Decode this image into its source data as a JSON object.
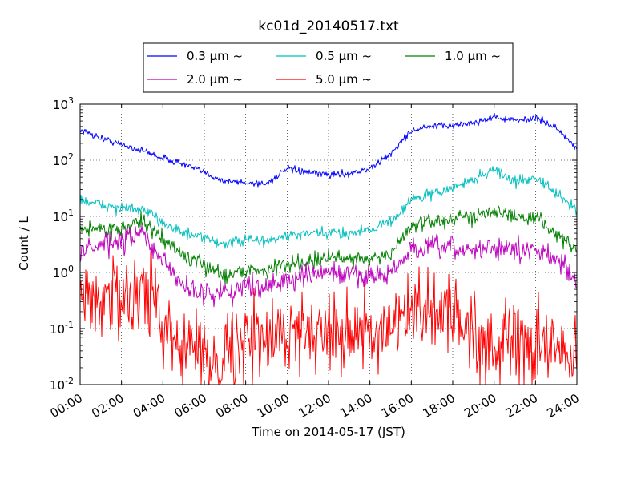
{
  "chart_data": {
    "type": "line",
    "title": "kc01d_20140517.txt",
    "xlabel": "Time on 2014-05-17 (JST)",
    "ylabel": "Count / L",
    "yscale": "log",
    "xlim": [
      "00:00",
      "24:00"
    ],
    "ylim": [
      0.01,
      1000
    ],
    "grid": true,
    "legend": {
      "placement": "top-center",
      "columns": 3
    },
    "x_ticks": [
      "00:00",
      "02:00",
      "04:00",
      "06:00",
      "08:00",
      "10:00",
      "12:00",
      "14:00",
      "16:00",
      "18:00",
      "20:00",
      "22:00",
      "24:00"
    ],
    "y_tick_base": "10",
    "y_tick_exponents": [
      "-2",
      "-1",
      "0",
      "1",
      "2",
      "3"
    ],
    "x": [
      "00:00",
      "01:00",
      "02:00",
      "03:00",
      "04:00",
      "05:00",
      "06:00",
      "07:00",
      "08:00",
      "09:00",
      "10:00",
      "11:00",
      "12:00",
      "13:00",
      "14:00",
      "15:00",
      "16:00",
      "17:00",
      "18:00",
      "19:00",
      "20:00",
      "21:00",
      "22:00",
      "23:00",
      "24:00"
    ],
    "series": [
      {
        "name": "0.3 μm ~",
        "color": "#0000ff",
        "noise": 0.03,
        "values": [
          350,
          250,
          190,
          150,
          110,
          85,
          60,
          42,
          40,
          38,
          70,
          60,
          55,
          58,
          70,
          130,
          340,
          400,
          420,
          460,
          600,
          500,
          570,
          380,
          160
        ]
      },
      {
        "name": "0.5 μm ~",
        "color": "#00bfbf",
        "noise": 0.05,
        "values": [
          20,
          16,
          14,
          13,
          8,
          5,
          4,
          3.2,
          3.8,
          3.6,
          4.5,
          4.8,
          5.0,
          5.0,
          6.0,
          8.0,
          20,
          25,
          32,
          45,
          70,
          40,
          50,
          25,
          13
        ]
      },
      {
        "name": "1.0 μm ~",
        "color": "#008000",
        "noise": 0.07,
        "values": [
          6,
          6,
          6,
          8,
          4,
          2.0,
          1.3,
          0.9,
          1.1,
          1.1,
          1.4,
          1.6,
          1.8,
          1.8,
          1.8,
          2.0,
          7,
          8,
          9,
          10,
          14,
          9,
          10,
          5,
          2.3
        ]
      },
      {
        "name": "2.0 μm ~",
        "color": "#bf00bf",
        "noise": 0.1,
        "values": [
          2.5,
          3,
          3.5,
          5,
          1.5,
          0.6,
          0.4,
          0.45,
          0.55,
          0.6,
          0.7,
          0.85,
          1.0,
          0.9,
          0.9,
          0.9,
          2.5,
          2.8,
          2.6,
          2.5,
          2.8,
          2.4,
          2.5,
          2.0,
          0.6
        ]
      },
      {
        "name": "5.0 μm ~",
        "color": "#ff0000",
        "noise": 0.35,
        "values": [
          0.35,
          0.35,
          0.35,
          0.55,
          0.15,
          0.05,
          0.03,
          0.04,
          0.06,
          0.06,
          0.08,
          0.1,
          0.1,
          0.1,
          0.08,
          0.07,
          0.2,
          0.2,
          0.2,
          0.08,
          0.05,
          0.05,
          0.05,
          0.04,
          0.03
        ]
      }
    ]
  }
}
